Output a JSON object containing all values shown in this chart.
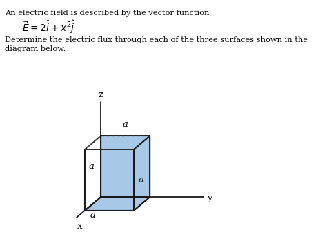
{
  "title_line1": "An electric field is described by the vector function",
  "eq_text": "$\\vec{E} = 2\\hat{i} + x^2\\hat{j}$",
  "body_line1": "Determine the electric flux through each of the three surfaces shown in the",
  "body_line2": "diagram below.",
  "face_color": "#a8c8e8",
  "edge_color": "#1a1a1a",
  "dashed_color": "#555555",
  "bg_color": "#ffffff",
  "text_color": "#000000"
}
